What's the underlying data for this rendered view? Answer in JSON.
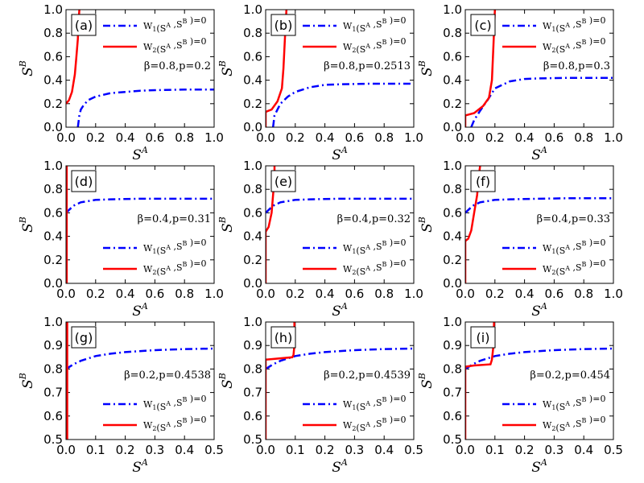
{
  "colors": {
    "w1": "#0000ff",
    "w2": "#ff0000"
  },
  "chart_data": [
    {
      "panel": "(a)",
      "type": "line",
      "xlim": [
        0,
        1
      ],
      "ylim": [
        0,
        1
      ],
      "xticks": [
        "0.0",
        "0.2",
        "0.4",
        "0.6",
        "0.8",
        "1.0"
      ],
      "yticks": [
        "0.0",
        "0.2",
        "0.4",
        "0.6",
        "0.8",
        "1.0"
      ],
      "xlabel": "S^A",
      "ylabel": "S^B",
      "annotation": "β=0.8,p=0.2",
      "annotation_pos": "upper-right",
      "legend": [
        "W1(S^A ,S^B )=0",
        "W2(S^A ,S^B )=0"
      ],
      "legend_pos": "upper-right",
      "series": [
        {
          "name": "W1(S^A ,S^B )=0",
          "x": [
            0.08,
            0.09,
            0.1,
            0.12,
            0.15,
            0.2,
            0.3,
            0.4,
            0.5,
            0.6,
            0.8,
            1.0
          ],
          "y": [
            0,
            0.1,
            0.15,
            0.19,
            0.23,
            0.26,
            0.29,
            0.3,
            0.31,
            0.315,
            0.32,
            0.32
          ]
        },
        {
          "name": "W2(S^A ,S^B )=0",
          "x": [
            0,
            0.02,
            0.04,
            0.06,
            0.07,
            0.08,
            0.085,
            0.09
          ],
          "y": [
            0.2,
            0.23,
            0.3,
            0.45,
            0.6,
            0.75,
            0.9,
            1.0
          ]
        }
      ]
    },
    {
      "panel": "(b)",
      "type": "line",
      "xlim": [
        0,
        1
      ],
      "ylim": [
        0,
        1
      ],
      "xticks": [
        "0.0",
        "0.2",
        "0.4",
        "0.6",
        "0.8",
        "1.0"
      ],
      "yticks": [
        "0.0",
        "0.2",
        "0.4",
        "0.6",
        "0.8",
        "1.0"
      ],
      "xlabel": "S^A",
      "ylabel": "S^B",
      "annotation": "β=0.8,p=0.2513",
      "annotation_pos": "upper-right",
      "legend": [
        "W1(S^A ,S^B )=0",
        "W2(S^A ,S^B )=0"
      ],
      "legend_pos": "upper-right",
      "series": [
        {
          "name": "W1(S^A ,S^B )=0",
          "x": [
            0.05,
            0.06,
            0.08,
            0.1,
            0.15,
            0.2,
            0.3,
            0.4,
            0.5,
            0.7,
            1.0
          ],
          "y": [
            0,
            0.1,
            0.15,
            0.2,
            0.26,
            0.3,
            0.34,
            0.36,
            0.365,
            0.37,
            0.37
          ]
        },
        {
          "name": "W2(S^A ,S^B )=0",
          "x": [
            0,
            0,
            0.04,
            0.08,
            0.11,
            0.12,
            0.13,
            0.14
          ],
          "y": [
            0,
            0.13,
            0.15,
            0.22,
            0.33,
            0.5,
            0.75,
            1.0
          ]
        }
      ]
    },
    {
      "panel": "(c)",
      "type": "line",
      "xlim": [
        0,
        1
      ],
      "ylim": [
        0,
        1
      ],
      "xticks": [
        "0.0",
        "0.2",
        "0.4",
        "0.6",
        "0.8",
        "1.0"
      ],
      "yticks": [
        "0.0",
        "0.2",
        "0.4",
        "0.6",
        "0.8",
        "1.0"
      ],
      "xlabel": "S^A",
      "ylabel": "S^B",
      "annotation": "β=0.8,p=0.3",
      "annotation_pos": "upper-right",
      "legend": [
        "W1(S^A ,S^B )=0",
        "W2(S^A ,S^B )=0"
      ],
      "legend_pos": "upper-right",
      "series": [
        {
          "name": "W1(S^A ,S^B )=0",
          "x": [
            0.04,
            0.06,
            0.1,
            0.15,
            0.2,
            0.3,
            0.4,
            0.5,
            0.7,
            1.0
          ],
          "y": [
            0,
            0.06,
            0.14,
            0.23,
            0.33,
            0.39,
            0.41,
            0.415,
            0.42,
            0.42
          ]
        },
        {
          "name": "W2(S^A ,S^B )=0",
          "x": [
            0,
            0,
            0.06,
            0.12,
            0.16,
            0.18,
            0.19,
            0.2
          ],
          "y": [
            0,
            0.1,
            0.12,
            0.18,
            0.25,
            0.4,
            0.7,
            1.0
          ]
        }
      ]
    },
    {
      "panel": "(d)",
      "type": "line",
      "xlim": [
        0,
        1
      ],
      "ylim": [
        0,
        1
      ],
      "xticks": [
        "0.0",
        "0.2",
        "0.4",
        "0.6",
        "0.8",
        "1.0"
      ],
      "yticks": [
        "0.0",
        "0.2",
        "0.4",
        "0.6",
        "0.8",
        "1.0"
      ],
      "xlabel": "S^A",
      "ylabel": "S^B",
      "annotation": "β=0.4,p=0.31",
      "annotation_pos": "center-right",
      "legend": [
        "W1(S^A ,S^B )=0",
        "W2(S^A ,S^B )=0"
      ],
      "legend_pos": "lower-right",
      "series": [
        {
          "name": "W1(S^A ,S^B )=0",
          "x": [
            0,
            0.05,
            0.1,
            0.2,
            0.3,
            0.5,
            0.7,
            1.0
          ],
          "y": [
            0.6,
            0.66,
            0.69,
            0.71,
            0.715,
            0.72,
            0.72,
            0.72
          ]
        },
        {
          "name": "W2(S^A ,S^B )=0",
          "x": [
            0.005,
            0.005
          ],
          "y": [
            0,
            1.0
          ]
        }
      ]
    },
    {
      "panel": "(e)",
      "type": "line",
      "xlim": [
        0,
        1
      ],
      "ylim": [
        0,
        1
      ],
      "xticks": [
        "0.0",
        "0.2",
        "0.4",
        "0.6",
        "0.8",
        "1.0"
      ],
      "yticks": [
        "0.0",
        "0.2",
        "0.4",
        "0.6",
        "0.8",
        "1.0"
      ],
      "xlabel": "S^A",
      "ylabel": "S^B",
      "annotation": "β=0.4,p=0.32",
      "annotation_pos": "center-right",
      "legend": [
        "W1(S^A ,S^B )=0",
        "W2(S^A ,S^B )=0"
      ],
      "legend_pos": "lower-right",
      "series": [
        {
          "name": "W1(S^A ,S^B )=0",
          "x": [
            0,
            0.05,
            0.1,
            0.2,
            0.3,
            0.5,
            0.7,
            1.0
          ],
          "y": [
            0.6,
            0.66,
            0.69,
            0.71,
            0.715,
            0.72,
            0.72,
            0.72
          ]
        },
        {
          "name": "W2(S^A ,S^B )=0",
          "x": [
            0,
            0,
            0.02,
            0.04,
            0.05,
            0.06,
            0.06
          ],
          "y": [
            0,
            0.44,
            0.48,
            0.6,
            0.75,
            0.9,
            1.0
          ]
        }
      ]
    },
    {
      "panel": "(f)",
      "type": "line",
      "xlim": [
        0,
        1
      ],
      "ylim": [
        0,
        1
      ],
      "xticks": [
        "0.0",
        "0.2",
        "0.4",
        "0.6",
        "0.8",
        "1.0"
      ],
      "yticks": [
        "0.0",
        "0.2",
        "0.4",
        "0.6",
        "0.8",
        "1.0"
      ],
      "xlabel": "S^A",
      "ylabel": "S^B",
      "annotation": "β=0.4,p=0.33",
      "annotation_pos": "center-right",
      "legend": [
        "W1(S^A ,S^B )=0",
        "W2(S^A ,S^B )=0"
      ],
      "legend_pos": "lower-right",
      "series": [
        {
          "name": "W1(S^A ,S^B )=0",
          "x": [
            0,
            0.05,
            0.1,
            0.2,
            0.3,
            0.5,
            0.7,
            1.0
          ],
          "y": [
            0.6,
            0.66,
            0.69,
            0.71,
            0.715,
            0.72,
            0.725,
            0.725
          ]
        },
        {
          "name": "W2(S^A ,S^B )=0",
          "x": [
            0,
            0,
            0.02,
            0.04,
            0.06,
            0.08,
            0.09,
            0.1
          ],
          "y": [
            0,
            0.36,
            0.38,
            0.45,
            0.6,
            0.75,
            0.9,
            1.0
          ]
        }
      ]
    },
    {
      "panel": "(g)",
      "type": "line",
      "xlim": [
        0,
        0.5
      ],
      "ylim": [
        0.5,
        1
      ],
      "xticks": [
        "0.0",
        "0.1",
        "0.2",
        "0.3",
        "0.4",
        "0.5"
      ],
      "yticks": [
        "0.5",
        "0.6",
        "0.7",
        "0.8",
        "0.9",
        "1.0"
      ],
      "xlabel": "S^A",
      "ylabel": "S^B",
      "annotation": "β=0.2,p=0.4538",
      "annotation_pos": "center-right",
      "legend": [
        "W1(S^A ,S^B )=0",
        "W2(S^A ,S^B )=0"
      ],
      "legend_pos": "lower-right",
      "series": [
        {
          "name": "W1(S^A ,S^B )=0",
          "x": [
            0,
            0.025,
            0.05,
            0.1,
            0.15,
            0.2,
            0.3,
            0.4,
            0.5
          ],
          "y": [
            0.8,
            0.82,
            0.835,
            0.855,
            0.865,
            0.872,
            0.88,
            0.885,
            0.887
          ]
        },
        {
          "name": "W2(S^A ,S^B )=0",
          "x": [
            0.004,
            0.004
          ],
          "y": [
            0.5,
            1.0
          ]
        }
      ]
    },
    {
      "panel": "(h)",
      "type": "line",
      "xlim": [
        0,
        0.5
      ],
      "ylim": [
        0.5,
        1
      ],
      "xticks": [
        "0.0",
        "0.1",
        "0.2",
        "0.3",
        "0.4",
        "0.5"
      ],
      "yticks": [
        "0.5",
        "0.6",
        "0.7",
        "0.8",
        "0.9",
        "1.0"
      ],
      "xlabel": "S^A",
      "ylabel": "S^B",
      "annotation": "β=0.2,p=0.4539",
      "annotation_pos": "center-right",
      "legend": [
        "W1(S^A ,S^B )=0",
        "W2(S^A ,S^B )=0"
      ],
      "legend_pos": "lower-right",
      "series": [
        {
          "name": "W1(S^A ,S^B )=0",
          "x": [
            0,
            0.025,
            0.05,
            0.1,
            0.15,
            0.2,
            0.3,
            0.4,
            0.5
          ],
          "y": [
            0.8,
            0.82,
            0.835,
            0.855,
            0.865,
            0.872,
            0.88,
            0.885,
            0.887
          ]
        },
        {
          "name": "W2(S^A ,S^B )=0",
          "x": [
            0,
            0,
            0.02,
            0.09,
            0.094,
            0.097,
            0.097
          ],
          "y": [
            0.5,
            0.84,
            0.842,
            0.85,
            0.86,
            0.9,
            1.0
          ]
        }
      ]
    },
    {
      "panel": "(i)",
      "type": "line",
      "xlim": [
        0,
        0.5
      ],
      "ylim": [
        0.5,
        1
      ],
      "xticks": [
        "0.0",
        "0.1",
        "0.2",
        "0.3",
        "0.4",
        "0.5"
      ],
      "yticks": [
        "0.5",
        "0.6",
        "0.7",
        "0.8",
        "0.9",
        "1.0"
      ],
      "xlabel": "S^A",
      "ylabel": "S^B",
      "annotation": "β=0.2,p=0.454",
      "annotation_pos": "center-right",
      "legend": [
        "W1(S^A ,S^B )=0",
        "W2(S^A ,S^B )=0"
      ],
      "legend_pos": "lower-right",
      "series": [
        {
          "name": "W1(S^A ,S^B )=0",
          "x": [
            0,
            0.025,
            0.05,
            0.1,
            0.15,
            0.2,
            0.3,
            0.4,
            0.5
          ],
          "y": [
            0.8,
            0.82,
            0.835,
            0.855,
            0.865,
            0.872,
            0.88,
            0.885,
            0.887
          ]
        },
        {
          "name": "W2(S^A ,S^B )=0",
          "x": [
            0,
            0,
            0.03,
            0.085,
            0.09,
            0.095,
            0.097
          ],
          "y": [
            0.5,
            0.81,
            0.815,
            0.82,
            0.84,
            0.9,
            1.0
          ]
        }
      ]
    }
  ]
}
